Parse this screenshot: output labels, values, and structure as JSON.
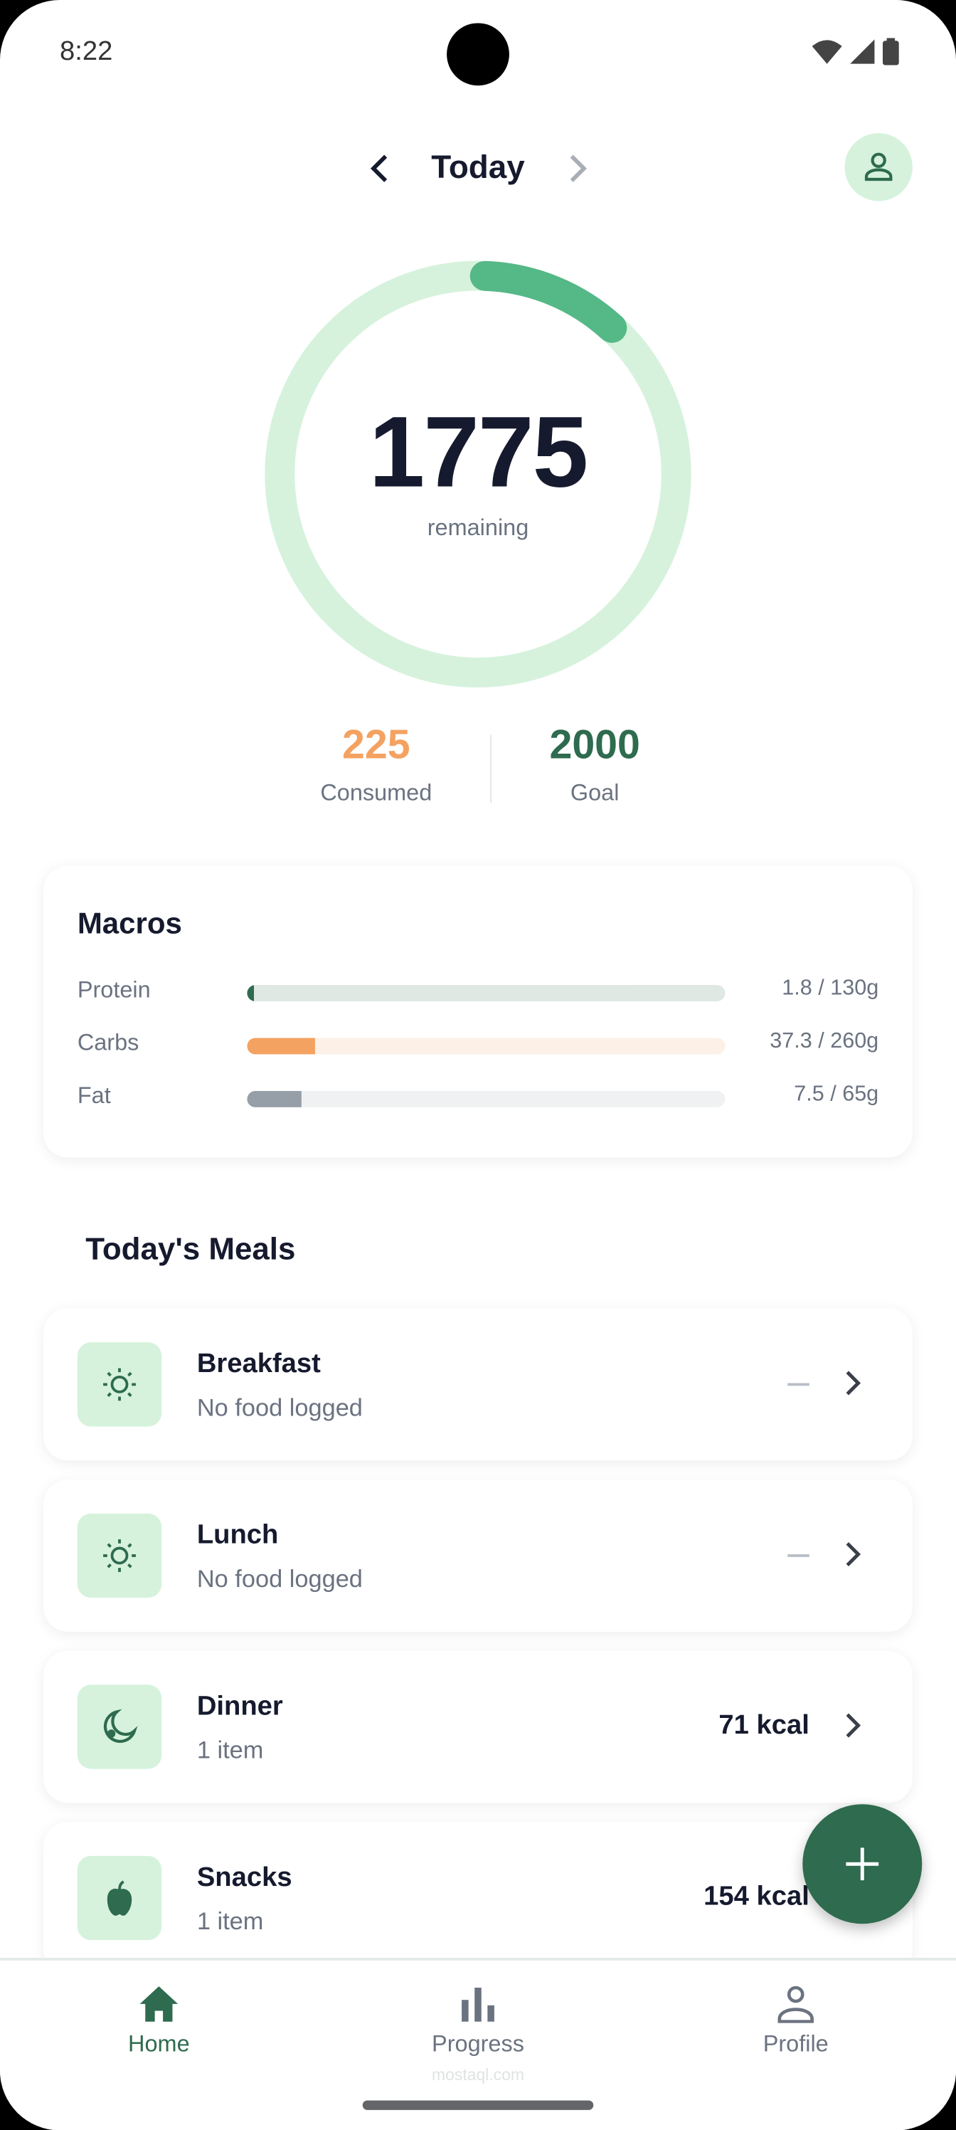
{
  "status_bar": {
    "time": "8:22",
    "icons": [
      "wifi-icon",
      "signal-icon",
      "battery-icon"
    ]
  },
  "header": {
    "title": "Today",
    "prev_icon": "chevron-left-icon",
    "next_icon": "chevron-right-icon",
    "profile_icon": "person-icon"
  },
  "summary": {
    "remaining": "1775",
    "remaining_label": "remaining",
    "consumed": "225",
    "consumed_label": "Consumed",
    "goal": "2000",
    "goal_label": "Goal",
    "progress_fraction": 0.1125
  },
  "macros": {
    "title": "Macros",
    "items": [
      {
        "name": "Protein",
        "value": "1.8 / 130g",
        "fraction": 0.014,
        "color": "#2e6b4f",
        "track": "#dfe8e2"
      },
      {
        "name": "Carbs",
        "value": "37.3 / 260g",
        "fraction": 0.143,
        "color": "#f4a261",
        "track": "#fdf0e6"
      },
      {
        "name": "Fat",
        "value": "7.5 / 65g",
        "fraction": 0.115,
        "color": "#969ea8",
        "track": "#eff1f3"
      }
    ]
  },
  "meals": {
    "title": "Today's Meals",
    "items": [
      {
        "name": "Breakfast",
        "sub": "No food logged",
        "kcal": "",
        "icon": "sun-icon"
      },
      {
        "name": "Lunch",
        "sub": "No food logged",
        "kcal": "",
        "icon": "sun-icon"
      },
      {
        "name": "Dinner",
        "sub": "1 item",
        "kcal": "71 kcal",
        "icon": "moon-icon"
      },
      {
        "name": "Snacks",
        "sub": "1 item",
        "kcal": "154 kcal",
        "icon": "apple-icon"
      }
    ]
  },
  "fab": {
    "icon": "plus-icon"
  },
  "nav": {
    "items": [
      {
        "label": "Home",
        "icon": "home-icon",
        "active": true
      },
      {
        "label": "Progress",
        "icon": "bar-chart-icon",
        "active": false
      },
      {
        "label": "Profile",
        "icon": "person-icon",
        "active": false
      }
    ]
  },
  "watermark": "mostaql.com",
  "colors": {
    "accent": "#2e6b4f",
    "ring": "#55b887",
    "ring_track": "#d6f2dc",
    "consumed": "#f4a261"
  }
}
